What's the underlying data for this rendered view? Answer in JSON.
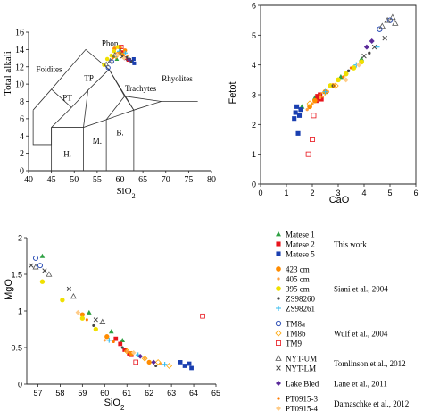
{
  "chart_data": [
    {
      "type": "scatter",
      "title": "",
      "xlabel": "SiO2",
      "ylabel": "Total alkali",
      "xlim": [
        40,
        80
      ],
      "ylim": [
        0,
        16
      ],
      "xticks": [
        "40",
        "45",
        "50",
        "55",
        "60",
        "65",
        "70",
        "75",
        "80"
      ],
      "yticks": [
        "0",
        "2",
        "4",
        "6",
        "8",
        "10",
        "12",
        "14",
        "16"
      ],
      "field_labels": [
        "Foidites",
        "Phon.",
        "TP",
        "PT",
        "Trachytes",
        "Rhyolites",
        "H.",
        "M.",
        "B."
      ],
      "boundaries": [
        [
          [
            41,
            7
          ],
          [
            41,
            3
          ],
          [
            45,
            3
          ],
          [
            45,
            5
          ],
          [
            52,
            5
          ],
          [
            57,
            5.9
          ],
          [
            63,
            7
          ],
          [
            69,
            8
          ],
          [
            77,
            8
          ]
        ],
        [
          [
            41,
            7
          ],
          [
            45,
            9.4
          ],
          [
            48.4,
            11.5
          ],
          [
            52.5,
            14
          ],
          [
            57.6,
            11.7
          ],
          [
            63,
            7
          ]
        ],
        [
          [
            45,
            5
          ],
          [
            49.4,
            7.3
          ],
          [
            53,
            9.3
          ],
          [
            57.6,
            11.7
          ]
        ],
        [
          [
            52,
            5
          ],
          [
            53,
            9.3
          ]
        ],
        [
          [
            49.4,
            7.3
          ],
          [
            45,
            9.4
          ]
        ],
        [
          [
            57,
            5.9
          ],
          [
            61,
            8.6
          ],
          [
            57.6,
            11.7
          ]
        ],
        [
          [
            61,
            8.6
          ],
          [
            63,
            7
          ]
        ],
        [
          [
            61,
            8.6
          ],
          [
            69,
            8
          ]
        ],
        [
          [
            63,
            0
          ],
          [
            63,
            7
          ]
        ],
        [
          [
            57,
            0
          ],
          [
            57,
            5.9
          ]
        ],
        [
          [
            52,
            0
          ],
          [
            52,
            5
          ]
        ],
        [
          [
            45,
            0
          ],
          [
            45,
            5
          ]
        ]
      ],
      "series": [
        {
          "name": "Matese 1",
          "color": "#2ea043",
          "marker": "triangle",
          "x": [
            58.6,
            59.3,
            60.2
          ],
          "y": [
            13.2,
            12.9,
            13.8
          ]
        },
        {
          "name": "Matese 2",
          "color": "#e8141c",
          "marker": "square",
          "x": [
            60.4,
            61.2,
            61.8
          ],
          "y": [
            13.7,
            13.0,
            12.8
          ]
        },
        {
          "name": "Matese 5",
          "color": "#1a3fb0",
          "marker": "square",
          "x": [
            62.6,
            63.0,
            63.1
          ],
          "y": [
            12.6,
            12.9,
            12.4
          ]
        },
        {
          "name": "423 cm",
          "color": "#ff8c00",
          "marker": "circle",
          "x": [
            58.8,
            59.5,
            60.0,
            60.6,
            61.1
          ],
          "y": [
            14.1,
            13.5,
            14.2,
            13.4,
            13.9
          ]
        },
        {
          "name": "405 cm",
          "color": "#ffa040",
          "marker": "dot",
          "x": [
            59.7,
            60.3,
            61.0,
            61.6
          ],
          "y": [
            14.2,
            13.6,
            13.7,
            13.3
          ]
        },
        {
          "name": "395 cm",
          "color": "#f0e000",
          "marker": "circle",
          "x": [
            56.5,
            57.2,
            58.1,
            58.7,
            59.5
          ],
          "y": [
            12.2,
            12.9,
            13.3,
            13.8,
            14.3
          ]
        },
        {
          "name": "ZS98260",
          "color": "#444444",
          "marker": "dot",
          "x": [
            60.2,
            61.5,
            62.2
          ],
          "y": [
            13.6,
            13.1,
            12.9
          ]
        },
        {
          "name": "ZS98261",
          "color": "#33bbee",
          "marker": "plus",
          "x": [
            59.8,
            61.2
          ],
          "y": [
            13.8,
            13.6
          ]
        },
        {
          "name": "TM8a",
          "color": "#1a3fb0",
          "marker": "ocircle",
          "x": [
            57.4,
            58.2
          ],
          "y": [
            11.9,
            12.6
          ]
        },
        {
          "name": "TM8b",
          "color": "#ffa500",
          "marker": "odiamond",
          "x": [
            59.1,
            60.0,
            60.8
          ],
          "y": [
            13.2,
            13.5,
            13.1
          ]
        },
        {
          "name": "TM9",
          "color": "#e8141c",
          "marker": "osquare",
          "x": [
            60.3
          ],
          "y": [
            14.3
          ]
        },
        {
          "name": "NYT-UM",
          "color": "#555555",
          "marker": "otriangle",
          "x": [
            57.0,
            57.9,
            58.9
          ],
          "y": [
            12.3,
            12.7,
            13.4
          ]
        },
        {
          "name": "NYT-LM",
          "color": "#444444",
          "marker": "x",
          "x": [
            60.5,
            61.7,
            62.4
          ],
          "y": [
            13.2,
            12.9,
            12.6
          ]
        },
        {
          "name": "Lake Bled",
          "color": "#5a2a9a",
          "marker": "diamond",
          "x": [
            61.0,
            62.0
          ],
          "y": [
            13.0,
            12.8
          ]
        },
        {
          "name": "PT0915-3",
          "color": "#ff7a00",
          "marker": "dot",
          "x": [
            58.4,
            60.0
          ],
          "y": [
            13.0,
            13.7
          ]
        },
        {
          "name": "PT0915-4",
          "color": "#ffcc88",
          "marker": "diamond",
          "x": [
            59.4,
            60.9
          ],
          "y": [
            13.4,
            13.0
          ]
        }
      ]
    },
    {
      "type": "scatter",
      "title": "",
      "xlabel": "CaO",
      "ylabel": "Fetot",
      "xlim": [
        0,
        6
      ],
      "ylim": [
        0,
        6
      ],
      "xticks": [
        "0",
        "1",
        "2",
        "3",
        "4",
        "5",
        "6"
      ],
      "yticks": [
        "0",
        "1",
        "2",
        "3",
        "4",
        "5",
        "6"
      ],
      "series": [
        {
          "name": "Matese 1",
          "color": "#2ea043",
          "marker": "triangle",
          "x": [
            1.6,
            2.1,
            2.5,
            3.1,
            3.9
          ],
          "y": [
            2.6,
            2.9,
            3.1,
            3.6,
            4.2
          ]
        },
        {
          "name": "Matese 2",
          "color": "#e8141c",
          "marker": "square",
          "x": [
            2.15,
            2.2,
            2.3,
            2.25,
            2.35
          ],
          "y": [
            2.8,
            2.95,
            3.0,
            2.9,
            2.85
          ]
        },
        {
          "name": "Matese 5",
          "color": "#1a3fb0",
          "marker": "square",
          "x": [
            1.3,
            1.35,
            1.4,
            1.5,
            1.45,
            1.55
          ],
          "y": [
            2.2,
            2.4,
            2.6,
            2.3,
            1.7,
            2.5
          ]
        },
        {
          "name": "423 cm",
          "color": "#ff8c00",
          "marker": "circle",
          "x": [
            1.9,
            2.1,
            2.5,
            2.8
          ],
          "y": [
            2.6,
            2.8,
            3.1,
            3.3
          ]
        },
        {
          "name": "405 cm",
          "color": "#ffa040",
          "marker": "dot",
          "x": [
            1.8,
            2.0,
            2.3,
            2.6
          ],
          "y": [
            2.5,
            2.7,
            2.9,
            3.1
          ]
        },
        {
          "name": "395 cm",
          "color": "#f0e000",
          "marker": "circle",
          "x": [
            2.7,
            3.0,
            3.3,
            3.6,
            3.9
          ],
          "y": [
            3.3,
            3.5,
            3.7,
            3.9,
            4.1
          ]
        },
        {
          "name": "ZS98260",
          "color": "#444444",
          "marker": "dot",
          "x": [
            2.8,
            3.4,
            4.2
          ],
          "y": [
            3.3,
            3.8,
            4.4
          ]
        },
        {
          "name": "ZS98261",
          "color": "#33bbee",
          "marker": "plus",
          "x": [
            2.5,
            3.7,
            4.5
          ],
          "y": [
            3.1,
            4.0,
            4.6
          ]
        },
        {
          "name": "TM8a",
          "color": "#1a3fb0",
          "marker": "ocircle",
          "x": [
            4.6,
            5.0
          ],
          "y": [
            5.2,
            5.5
          ]
        },
        {
          "name": "TM8b",
          "color": "#ffa500",
          "marker": "odiamond",
          "x": [
            1.9,
            2.4,
            2.9
          ],
          "y": [
            2.7,
            3.0,
            3.3
          ]
        },
        {
          "name": "TM9",
          "color": "#e8141c",
          "marker": "osquare",
          "x": [
            1.85,
            2.0,
            2.05
          ],
          "y": [
            1.0,
            1.5,
            2.3
          ]
        },
        {
          "name": "NYT-UM",
          "color": "#555555",
          "marker": "otriangle",
          "x": [
            4.7,
            4.9,
            5.1,
            5.2
          ],
          "y": [
            5.3,
            5.5,
            5.6,
            5.4
          ]
        },
        {
          "name": "NYT-LM",
          "color": "#444444",
          "marker": "x",
          "x": [
            4.0,
            4.4,
            4.8
          ],
          "y": [
            4.3,
            4.6,
            4.9
          ]
        },
        {
          "name": "Lake Bled",
          "color": "#5a2a9a",
          "marker": "diamond",
          "x": [
            4.1,
            4.3
          ],
          "y": [
            4.6,
            4.8
          ]
        },
        {
          "name": "PT0915-3",
          "color": "#ff7a00",
          "marker": "dot",
          "x": [
            3.2,
            3.5
          ],
          "y": [
            3.6,
            3.9
          ]
        },
        {
          "name": "PT0915-4",
          "color": "#ffcc88",
          "marker": "diamond",
          "x": [
            3.3,
            3.8
          ],
          "y": [
            3.5,
            4.0
          ]
        }
      ]
    },
    {
      "type": "scatter",
      "title": "",
      "xlabel": "SiO2",
      "ylabel": "MgO",
      "xlim": [
        56.5,
        65
      ],
      "ylim": [
        0,
        2
      ],
      "xticks": [
        "57",
        "58",
        "59",
        "60",
        "61",
        "62",
        "63",
        "64",
        "65"
      ],
      "yticks": [
        "0",
        "0.5",
        "1",
        "1.5",
        "2"
      ],
      "series": [
        {
          "name": "Matese 1",
          "color": "#2ea043",
          "marker": "triangle",
          "x": [
            57.2,
            59.3,
            60.3,
            60.8
          ],
          "y": [
            1.75,
            0.98,
            0.72,
            0.6
          ]
        },
        {
          "name": "Matese 2",
          "color": "#e8141c",
          "marker": "square",
          "x": [
            60.5,
            60.7,
            60.9,
            61.1,
            61.2
          ],
          "y": [
            0.62,
            0.55,
            0.47,
            0.42,
            0.4
          ]
        },
        {
          "name": "Matese 5",
          "color": "#1a3fb0",
          "marker": "square",
          "x": [
            63.4,
            63.6,
            63.8,
            63.9
          ],
          "y": [
            0.3,
            0.25,
            0.28,
            0.22
          ]
        },
        {
          "name": "423 cm",
          "color": "#ff8c00",
          "marker": "circle",
          "x": [
            59.0,
            60.1,
            61.2,
            62.0
          ],
          "y": [
            0.95,
            0.65,
            0.42,
            0.3
          ]
        },
        {
          "name": "405 cm",
          "color": "#ffa040",
          "marker": "dot",
          "x": [
            60.0,
            61.0,
            61.8,
            62.5
          ],
          "y": [
            0.6,
            0.45,
            0.35,
            0.28
          ]
        },
        {
          "name": "395 cm",
          "color": "#f0e000",
          "marker": "circle",
          "x": [
            57.2,
            58.1,
            59.0,
            59.6
          ],
          "y": [
            1.4,
            1.15,
            0.9,
            0.75
          ]
        },
        {
          "name": "ZS98260",
          "color": "#444444",
          "marker": "dot",
          "x": [
            59.5,
            60.8,
            62.3
          ],
          "y": [
            0.8,
            0.5,
            0.25
          ]
        },
        {
          "name": "ZS98261",
          "color": "#33bbee",
          "marker": "plus",
          "x": [
            60.2,
            61.5,
            62.7
          ],
          "y": [
            0.6,
            0.4,
            0.27
          ]
        },
        {
          "name": "TM8a",
          "color": "#1a3fb0",
          "marker": "ocircle",
          "x": [
            56.9,
            57.1
          ],
          "y": [
            1.72,
            1.62
          ]
        },
        {
          "name": "TM8b",
          "color": "#ffa500",
          "marker": "odiamond",
          "x": [
            61.0,
            61.8,
            62.4,
            62.9
          ],
          "y": [
            0.45,
            0.35,
            0.3,
            0.25
          ]
        },
        {
          "name": "TM9",
          "color": "#e8141c",
          "marker": "osquare",
          "x": [
            64.4,
            61.4
          ],
          "y": [
            0.93,
            0.3
          ]
        },
        {
          "name": "NYT-UM",
          "color": "#555555",
          "marker": "otriangle",
          "x": [
            56.9,
            57.5,
            58.6,
            59.9
          ],
          "y": [
            1.6,
            1.5,
            1.2,
            0.85
          ]
        },
        {
          "name": "NYT-LM",
          "color": "#444444",
          "marker": "x",
          "x": [
            56.7,
            57.3,
            58.4,
            59.6
          ],
          "y": [
            1.62,
            1.55,
            1.3,
            0.88
          ]
        },
        {
          "name": "Lake Bled",
          "color": "#5a2a9a",
          "marker": "diamond",
          "x": [
            61.6,
            62.2
          ],
          "y": [
            0.38,
            0.3
          ]
        },
        {
          "name": "PT0915-3",
          "color": "#ff7a00",
          "marker": "dot",
          "x": [
            59.2,
            60.4
          ],
          "y": [
            0.88,
            0.58
          ]
        },
        {
          "name": "PT0915-4",
          "color": "#ffcc88",
          "marker": "diamond",
          "x": [
            58.8,
            61.3
          ],
          "y": [
            0.98,
            0.43
          ]
        }
      ]
    }
  ],
  "legend": {
    "groups": [
      {
        "citation": "This work",
        "entries": [
          {
            "label": "Matese 1",
            "color": "#2ea043",
            "marker": "triangle"
          },
          {
            "label": "Matese 2",
            "color": "#e8141c",
            "marker": "square"
          },
          {
            "label": "Matese 5",
            "color": "#1a3fb0",
            "marker": "square"
          }
        ]
      },
      {
        "citation": "Siani et al., 2004",
        "entries": [
          {
            "label": "423 cm",
            "color": "#ff8c00",
            "marker": "circle"
          },
          {
            "label": "405 cm",
            "color": "#ffa040",
            "marker": "dot"
          },
          {
            "label": "395 cm",
            "color": "#f0e000",
            "marker": "circle"
          },
          {
            "label": "ZS98260",
            "color": "#444444",
            "marker": "dot"
          },
          {
            "label": "ZS98261",
            "color": "#33bbee",
            "marker": "plus"
          }
        ]
      },
      {
        "citation": "Wulf et al., 2004",
        "entries": [
          {
            "label": "TM8a",
            "color": "#1a3fb0",
            "marker": "ocircle"
          },
          {
            "label": "TM8b",
            "color": "#ffa500",
            "marker": "odiamond"
          },
          {
            "label": "TM9",
            "color": "#e8141c",
            "marker": "osquare"
          }
        ]
      },
      {
        "citation": "Tomlinson et al., 2012",
        "entries": [
          {
            "label": "NYT-UM",
            "color": "#555555",
            "marker": "otriangle"
          },
          {
            "label": "NYT-LM",
            "color": "#444444",
            "marker": "x"
          }
        ]
      },
      {
        "citation": "Lane et al., 2011",
        "entries": [
          {
            "label": "Lake Bled",
            "color": "#5a2a9a",
            "marker": "diamond"
          }
        ]
      },
      {
        "citation": "Damaschke et al., 2012",
        "entries": [
          {
            "label": "PT0915-3",
            "color": "#ff7a00",
            "marker": "dot"
          },
          {
            "label": "PT0915-4",
            "color": "#ffcc88",
            "marker": "diamond"
          }
        ]
      }
    ]
  }
}
